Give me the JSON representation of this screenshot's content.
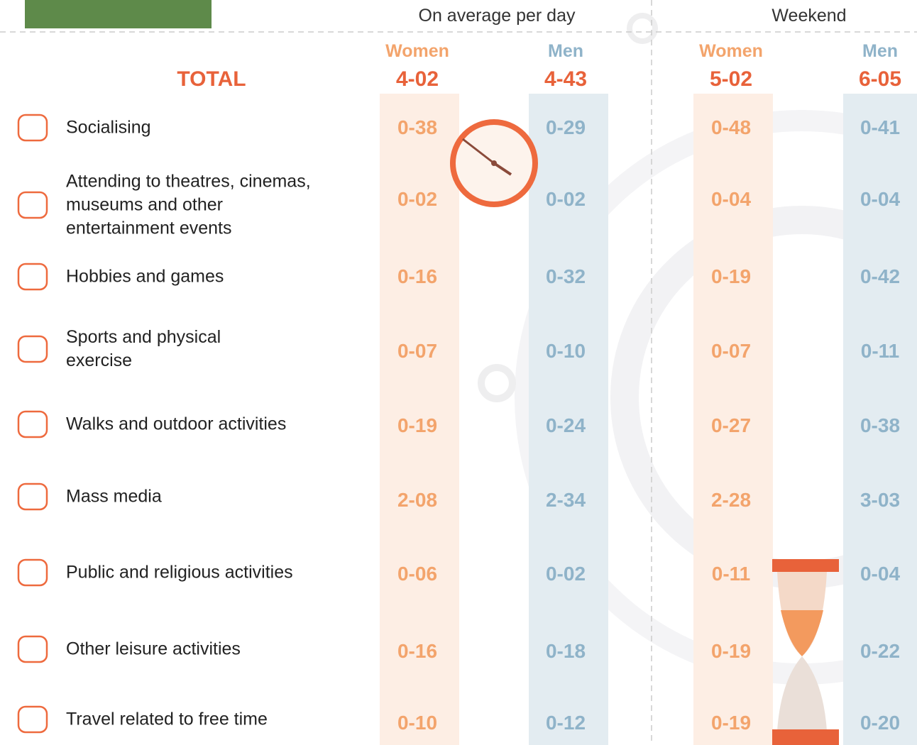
{
  "groups": [
    "On average per day",
    "Weekend"
  ],
  "columns": [
    "Women",
    "Men",
    "Women",
    "Men"
  ],
  "total": {
    "label": "TOTAL",
    "values": [
      "4-02",
      "4-43",
      "5-02",
      "6-05"
    ]
  },
  "rows": [
    {
      "lines": [
        "Socialising"
      ],
      "values": [
        "0-38",
        "0-29",
        "0-48",
        "0-41"
      ]
    },
    {
      "lines": [
        "Attending to theatres, cinemas,",
        "museums and other",
        "entertainment events"
      ],
      "values": [
        "0-02",
        "0-02",
        "0-04",
        "0-04"
      ]
    },
    {
      "lines": [
        "Hobbies and games"
      ],
      "values": [
        "0-16",
        "0-32",
        "0-19",
        "0-42"
      ]
    },
    {
      "lines": [
        "Sports and physical",
        "exercise"
      ],
      "values": [
        "0-07",
        "0-10",
        "0-07",
        "0-11"
      ]
    },
    {
      "lines": [
        "Walks and outdoor activities"
      ],
      "values": [
        "0-19",
        "0-24",
        "0-27",
        "0-38"
      ]
    },
    {
      "lines": [
        "Mass media"
      ],
      "values": [
        "2-08",
        "2-34",
        "2-28",
        "3-03"
      ]
    },
    {
      "lines": [
        "Public and religious activities"
      ],
      "values": [
        "0-06",
        "0-02",
        "0-11",
        "0-04"
      ]
    },
    {
      "lines": [
        "Other leisure activities"
      ],
      "values": [
        "0-16",
        "0-18",
        "0-19",
        "0-22"
      ]
    },
    {
      "lines": [
        "Travel related to free time"
      ],
      "values": [
        "0-10",
        "0-12",
        "0-19",
        "0-20"
      ]
    }
  ]
}
